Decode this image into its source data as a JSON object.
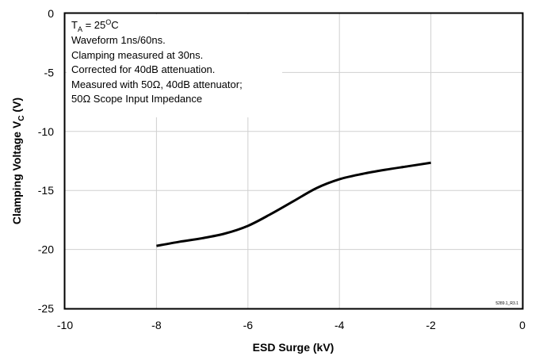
{
  "chart_data": {
    "type": "line",
    "xlabel": "ESD Surge (kV)",
    "ylabel_main": "Clamping Voltage V",
    "ylabel_sub": "C",
    "ylabel_unit": " (V)",
    "xlim": [
      -10,
      0
    ],
    "ylim": [
      -25,
      0
    ],
    "x_ticks": [
      "-10",
      "-8",
      "-6",
      "-4",
      "-2",
      "0"
    ],
    "y_ticks": [
      "0",
      "-5",
      "-10",
      "-15",
      "-20",
      "-25"
    ],
    "grid": true,
    "annotation": {
      "ta_main": "T",
      "ta_sub": "A",
      "ta_eq": " = 25",
      "ta_deg": "O",
      "ta_unit": "C",
      "lines": [
        "Waveform 1ns/60ns.",
        "Clamping measured at 30ns.",
        "Corrected for 40dB attenuation.",
        "Measured with 50Ω, 40dB attenuator;",
        "50Ω Scope Input Impedance"
      ]
    },
    "figure_id": "5289.1_R3.1",
    "series": [
      {
        "color": "#000000",
        "x": [
          -8,
          -7.5,
          -7,
          -6.5,
          -6,
          -5.5,
          -5,
          -4.5,
          -4,
          -3.5,
          -3,
          -2.5,
          -2
        ],
        "y": [
          -19.7,
          -19.35,
          -19.05,
          -18.65,
          -18.0,
          -17.0,
          -15.9,
          -14.8,
          -14.05,
          -13.6,
          -13.25,
          -12.95,
          -12.65
        ]
      }
    ]
  }
}
